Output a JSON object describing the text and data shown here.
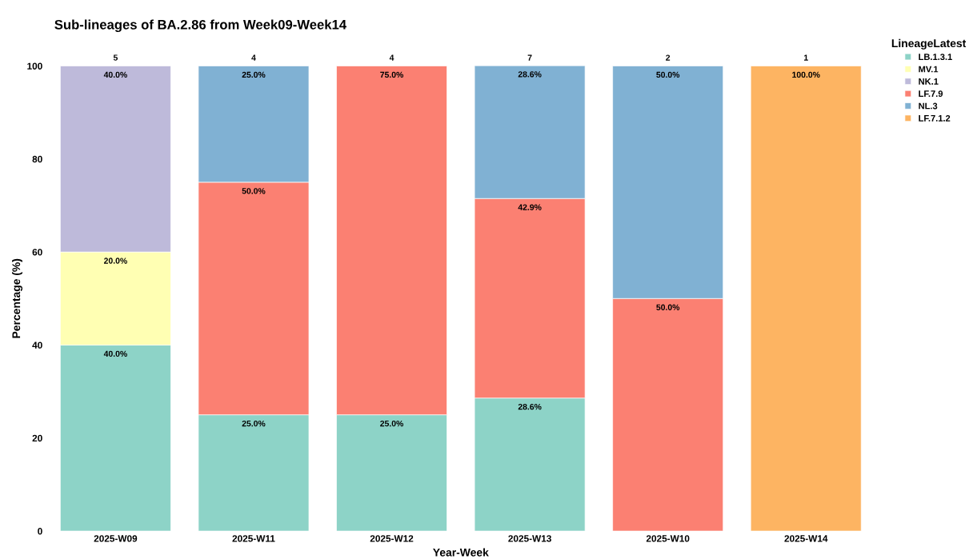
{
  "chart_data": {
    "type": "bar",
    "title": "Sub-lineages of BA.2.86 from Week09-Week14",
    "xlabel": "Year-Week",
    "ylabel": "Percentage (%)",
    "legend_title": "LineageLatest",
    "categories": [
      "2025-W09",
      "2025-W11",
      "2025-W12",
      "2025-W13",
      "2025-W10",
      "2025-W14"
    ],
    "stacked": true,
    "legend": "top right",
    "grid": false,
    "ylim": [
      0,
      100
    ],
    "yticks": [
      0,
      20,
      40,
      60,
      80,
      100
    ],
    "series": [
      {
        "name": "LB.1.3.1",
        "color": "#8dd3c7",
        "values": [
          40.0,
          25.0,
          25.0,
          28.6,
          null,
          null
        ],
        "value_labels": [
          "40.0%",
          "25.0%",
          "25.0%",
          "28.6%",
          null,
          null
        ]
      },
      {
        "name": "MV.1",
        "color": "#ffffb3",
        "values": [
          20.0,
          null,
          null,
          null,
          null,
          null
        ],
        "value_labels": [
          "20.0%",
          null,
          null,
          null,
          null,
          null
        ]
      },
      {
        "name": "NK.1",
        "color": "#bebada",
        "values": [
          40.0,
          null,
          null,
          null,
          null,
          null
        ],
        "value_labels": [
          "40.0%",
          null,
          null,
          null,
          null,
          null
        ]
      },
      {
        "name": "LF.7.9",
        "color": "#fb8072",
        "values": [
          null,
          50.0,
          75.0,
          42.9,
          50.0,
          null
        ],
        "value_labels": [
          null,
          "50.0%",
          "75.0%",
          "42.9%",
          "50.0%",
          null
        ]
      },
      {
        "name": "NL.3",
        "color": "#80b1d3",
        "values": [
          null,
          25.0,
          null,
          28.6,
          50.0,
          null
        ],
        "value_labels": [
          null,
          "25.0%",
          null,
          "28.6%",
          "50.0%",
          null
        ]
      },
      {
        "name": "LF.7.1.2",
        "color": "#fdb462",
        "values": [
          null,
          null,
          null,
          null,
          null,
          100.0
        ],
        "value_labels": [
          null,
          null,
          null,
          null,
          null,
          "100.0%"
        ]
      }
    ],
    "annotations": [
      {
        "text": "5",
        "x": "2025-W09",
        "y": 100
      },
      {
        "text": "4",
        "x": "2025-W11",
        "y": 100
      },
      {
        "text": "4",
        "x": "2025-W12",
        "y": 100
      },
      {
        "text": "7",
        "x": "2025-W13",
        "y": 100
      },
      {
        "text": "2",
        "x": "2025-W10",
        "y": 100
      },
      {
        "text": "1",
        "x": "2025-W14",
        "y": 100
      }
    ]
  }
}
